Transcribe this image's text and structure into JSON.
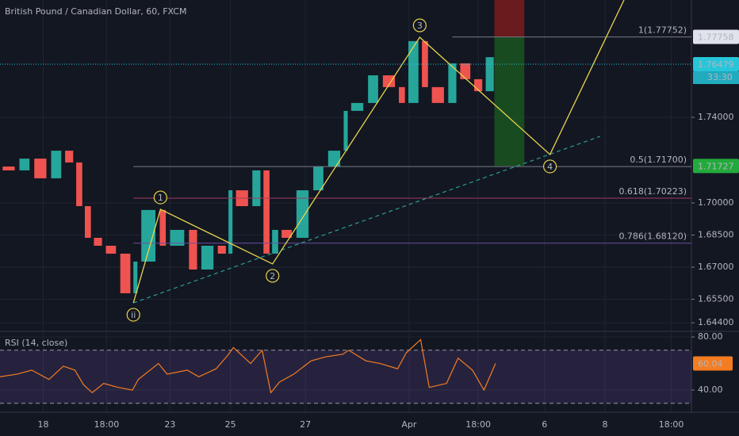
{
  "chart_data": [
    {
      "type": "candlestick",
      "title": "British Pound / Canadian Dollar, 60, FXCM",
      "x": [
        0,
        6,
        11,
        17,
        22,
        26,
        29,
        32,
        36,
        41,
        46,
        48,
        55,
        58,
        65,
        69,
        75,
        79,
        81,
        87,
        91,
        94,
        97,
        102,
        108,
        113,
        119,
        121,
        127,
        132,
        138,
        141,
        146,
        149,
        155,
        159,
        164,
        168,
        172
      ],
      "values": [
        1.717,
        1.7152,
        1.7207,
        1.7115,
        1.7244,
        1.7189,
        1.6985,
        1.6837,
        1.68,
        1.6763,
        1.6578,
        1.6726,
        1.6967,
        1.68,
        1.6874,
        1.6689,
        1.68,
        1.6763,
        1.7059,
        1.6985,
        1.7152,
        1.6763,
        1.6874,
        1.6837,
        1.7059,
        1.717,
        1.7244,
        1.743,
        1.7467,
        1.7596,
        1.7541,
        1.7467,
        1.7756,
        1.7541,
        1.7467,
        1.7652,
        1.7578,
        1.7522,
        1.7681
      ],
      "up_color": "#26a69a",
      "down_color": "#ef5350",
      "xlim": [
        0,
        240
      ],
      "ylim": [
        1.64,
        1.7948
      ],
      "yticks": [
        {
          "value": 1.644,
          "label": "1.64400"
        },
        {
          "value": 1.655,
          "label": "1.65500"
        },
        {
          "value": 1.67,
          "label": "1.67000"
        },
        {
          "value": 1.685,
          "label": "1.68500"
        },
        {
          "value": 1.7,
          "label": "1.70000"
        },
        {
          "value": 1.74,
          "label": "1.74000"
        }
      ],
      "grid": true,
      "waves": {
        "color": "#e8d44d",
        "x": [
          46.3,
          55.7,
          94.6,
          145.7,
          190.9,
          216.6
        ],
        "values": [
          1.6533,
          1.697,
          1.6715,
          1.7774,
          1.7226,
          1.7948
        ],
        "labels": [
          "ii",
          "1",
          "2",
          "3",
          "4",
          null
        ]
      },
      "trend_line": {
        "color": "#2a9d8f",
        "x": [
          46.3,
          208.3
        ],
        "values": [
          1.6533,
          1.7311
        ],
        "dashed": true
      },
      "fib_levels": [
        {
          "label": "1(1.77752)",
          "value": 1.77752,
          "x_start": 157,
          "color": "#787b86"
        },
        {
          "label": "0.5(1.71700)",
          "value": 1.717,
          "x_start": 46.3,
          "color": "#787b86"
        },
        {
          "label": "0.618(1.70223)",
          "value": 1.70223,
          "x_start": 46.3,
          "color": "#a03a5e"
        },
        {
          "label": "0.786(1.68120)",
          "value": 1.6812,
          "x_start": 46.3,
          "color": "#6b4fa0"
        }
      ],
      "position": {
        "x": [
          171.6,
          182
        ],
        "entry": 1.77758,
        "target": 1.71727,
        "stop": 1.7984,
        "profit_color": "#1b5e20",
        "loss_color": "#7f1d1d"
      },
      "price_labels": [
        {
          "value": 1.77758,
          "label": "1.77758",
          "color": "#e0e3eb",
          "text_color": "#131722"
        },
        {
          "value": 1.76479,
          "label": "1.76479",
          "color": "#26c6da",
          "text_color": "#131722",
          "countdown": "33:30",
          "line": true
        },
        {
          "value": 1.71727,
          "label": "1.71727",
          "color": "#22ab3c",
          "text_color": "#ffffff"
        }
      ]
    },
    {
      "type": "line",
      "title": "RSI (14, close)",
      "x": [
        0,
        6,
        11,
        17,
        22,
        26,
        29,
        32,
        36,
        41,
        46,
        48,
        55,
        58,
        65,
        69,
        75,
        79,
        81,
        87,
        91,
        94,
        97,
        102,
        108,
        113,
        119,
        121,
        127,
        132,
        138,
        141,
        146,
        149,
        155,
        159,
        164,
        168,
        172
      ],
      "values": [
        50,
        52,
        55,
        48,
        58,
        55,
        44,
        38,
        45,
        42,
        40,
        48,
        60,
        52,
        55,
        50,
        56,
        66,
        72,
        60,
        70,
        38,
        46,
        52,
        62,
        65,
        67,
        70,
        62,
        60,
        56,
        68,
        78,
        42,
        45,
        64,
        55,
        40,
        60.04
      ],
      "color": "#f57c20",
      "xlim": [
        0,
        240
      ],
      "ylim": [
        23.3,
        84.2
      ],
      "yticks": [
        {
          "value": 80,
          "label": "80.00"
        },
        {
          "value": 40,
          "label": "40.00"
        }
      ],
      "levels": [
        70,
        30
      ],
      "band_color": "#7e57c2",
      "xticks": [
        {
          "value": 15,
          "label": "18"
        },
        {
          "value": 37,
          "label": "18:00"
        },
        {
          "value": 59,
          "label": "23"
        },
        {
          "value": 80,
          "label": "25"
        },
        {
          "value": 106,
          "label": "27"
        },
        {
          "value": 142,
          "label": "Apr"
        },
        {
          "value": 166,
          "label": "18:00"
        },
        {
          "value": 189,
          "label": "6"
        },
        {
          "value": 210,
          "label": "8"
        },
        {
          "value": 233,
          "label": "18:00"
        }
      ],
      "grid": true
    }
  ]
}
